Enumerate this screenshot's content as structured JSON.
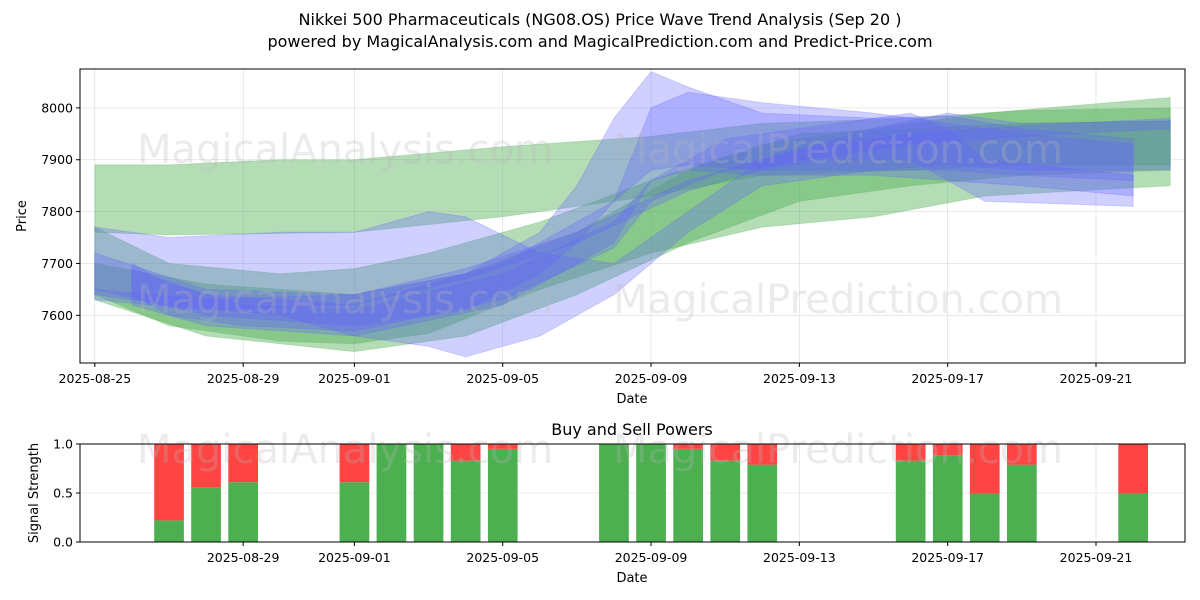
{
  "header": {
    "title_line1": "Nikkei 500 Pharmaceuticals (NG08.OS) Price Wave Trend Analysis (Sep 20 )",
    "title_line2": "powered by MagicalAnalysis.com and MagicalPrediction.com and Predict-Price.com"
  },
  "watermarks": {
    "analysis": "MagicalAnalysis.com",
    "prediction": "MagicalPrediction.com"
  },
  "colors": {
    "green_band": "#4caf50",
    "blue_band": "#6464ff",
    "buy": "#4caf50",
    "sell": "#ff4444"
  },
  "chart_data": [
    {
      "type": "area",
      "xlabel": "Date",
      "ylabel": "Price",
      "xlim": [
        "2025-08-24.6",
        "2025-09-23.4"
      ],
      "ylim": [
        7508,
        8075
      ],
      "yticks": [
        "7600",
        "7700",
        "7800",
        "7900",
        "8000"
      ],
      "xticks": [
        "2025-08-25",
        "2025-08-29",
        "2025-09-01",
        "2025-09-05",
        "2025-09-09",
        "2025-09-13",
        "2025-09-17",
        "2025-09-21"
      ],
      "grid": true,
      "series": [
        {
          "color": "green",
          "x": [
            "2025-08-25",
            "2025-08-27",
            "2025-08-30",
            "2025-09-01",
            "2025-09-05",
            "2025-09-09",
            "2025-09-12",
            "2025-09-16",
            "2025-09-19",
            "2025-09-23"
          ],
          "upper": [
            7890,
            7890,
            7900,
            7900,
            7925,
            7945,
            7970,
            7980,
            7995,
            8000
          ],
          "lower": [
            7760,
            7755,
            7758,
            7760,
            7790,
            7830,
            7870,
            7880,
            7890,
            7890
          ]
        },
        {
          "color": "green",
          "x": [
            "2025-08-25",
            "2025-08-27",
            "2025-08-30",
            "2025-09-01",
            "2025-09-03",
            "2025-09-06",
            "2025-09-09",
            "2025-09-12",
            "2025-09-15",
            "2025-09-18",
            "2025-09-23"
          ],
          "upper": [
            7770,
            7700,
            7680,
            7690,
            7720,
            7780,
            7860,
            7930,
            7960,
            7990,
            8020
          ],
          "lower": [
            7640,
            7580,
            7550,
            7545,
            7565,
            7650,
            7720,
            7770,
            7790,
            7830,
            7850
          ]
        },
        {
          "color": "green",
          "x": [
            "2025-08-25",
            "2025-08-28",
            "2025-09-01",
            "2025-09-04",
            "2025-09-07",
            "2025-09-10",
            "2025-09-13",
            "2025-09-16",
            "2025-09-19",
            "2025-09-23"
          ],
          "upper": [
            7700,
            7660,
            7640,
            7680,
            7760,
            7880,
            7950,
            7960,
            7970,
            7975
          ],
          "lower": [
            7630,
            7560,
            7530,
            7560,
            7640,
            7740,
            7820,
            7850,
            7870,
            7880
          ]
        },
        {
          "color": "blue",
          "x": [
            "2025-08-25",
            "2025-08-27",
            "2025-08-30",
            "2025-09-01",
            "2025-09-03",
            "2025-09-04",
            "2025-09-06",
            "2025-09-08",
            "2025-09-10",
            "2025-09-12",
            "2025-09-15",
            "2025-09-17",
            "2025-09-19",
            "2025-09-23"
          ],
          "upper": [
            7770,
            7750,
            7760,
            7760,
            7800,
            7790,
            7720,
            7700,
            7800,
            7900,
            7960,
            7990,
            7970,
            7975
          ],
          "lower": [
            7640,
            7620,
            7600,
            7560,
            7540,
            7520,
            7560,
            7640,
            7760,
            7850,
            7880,
            7890,
            7880,
            7880
          ]
        },
        {
          "color": "blue",
          "x": [
            "2025-08-25",
            "2025-08-28",
            "2025-09-01",
            "2025-09-04",
            "2025-09-06",
            "2025-09-07",
            "2025-09-08",
            "2025-09-09",
            "2025-09-10",
            "2025-09-12",
            "2025-09-15",
            "2025-09-17",
            "2025-09-19",
            "2025-09-22"
          ],
          "upper": [
            7720,
            7650,
            7640,
            7680,
            7760,
            7850,
            7980,
            8070,
            8040,
            7990,
            7980,
            7985,
            7960,
            7940
          ],
          "lower": [
            7650,
            7600,
            7580,
            7610,
            7680,
            7740,
            7820,
            7880,
            7890,
            7880,
            7880,
            7880,
            7870,
            7860
          ]
        },
        {
          "color": "blue",
          "x": [
            "2025-08-26",
            "2025-08-28",
            "2025-09-01",
            "2025-09-05",
            "2025-09-08",
            "2025-09-09",
            "2025-09-10",
            "2025-09-12",
            "2025-09-15",
            "2025-09-17",
            "2025-09-19",
            "2025-09-22"
          ],
          "upper": [
            7690,
            7640,
            7620,
            7700,
            7820,
            8000,
            8030,
            8010,
            7990,
            7970,
            7950,
            7930
          ],
          "lower": [
            7620,
            7580,
            7560,
            7620,
            7740,
            7860,
            7880,
            7870,
            7870,
            7860,
            7850,
            7830
          ]
        },
        {
          "color": "blue",
          "x": [
            "2025-08-26",
            "2025-08-27",
            "2025-08-29",
            "2025-09-01",
            "2025-09-05",
            "2025-09-08",
            "2025-09-09",
            "2025-09-11",
            "2025-09-14",
            "2025-09-16",
            "2025-09-17",
            "2025-09-18",
            "2025-09-22"
          ],
          "upper": [
            7700,
            7660,
            7620,
            7610,
            7680,
            7780,
            7860,
            7940,
            7970,
            7990,
            7960,
            7900,
            7870
          ],
          "lower": [
            7640,
            7600,
            7580,
            7570,
            7630,
            7730,
            7820,
            7880,
            7900,
            7900,
            7860,
            7820,
            7810
          ]
        },
        {
          "color": "blue",
          "x": [
            "2025-08-25",
            "2025-08-28",
            "2025-09-01",
            "2025-09-04",
            "2025-09-07",
            "2025-09-10",
            "2025-09-13",
            "2025-09-16",
            "2025-09-19",
            "2025-09-23"
          ],
          "upper": [
            7650,
            7630,
            7640,
            7690,
            7760,
            7860,
            7920,
            7950,
            7965,
            7980
          ],
          "lower": [
            7630,
            7610,
            7620,
            7670,
            7740,
            7840,
            7900,
            7930,
            7945,
            7960
          ]
        }
      ]
    },
    {
      "type": "bar",
      "title": "Buy and Sell Powers",
      "xlabel": "Date",
      "ylabel": "Signal Strength",
      "ylim": [
        0,
        1
      ],
      "yticks": [
        "0.0",
        "0.5",
        "1.0"
      ],
      "xticks": [
        "2025-08-29",
        "2025-09-01",
        "2025-09-05",
        "2025-09-09",
        "2025-09-13",
        "2025-09-17",
        "2025-09-21"
      ],
      "grid": true,
      "stacked": true,
      "categories": [
        "2025-08-27",
        "2025-08-28",
        "2025-08-29",
        "2025-09-01",
        "2025-09-02",
        "2025-09-03",
        "2025-09-04",
        "2025-09-05",
        "2025-09-08",
        "2025-09-09",
        "2025-09-10",
        "2025-09-11",
        "2025-09-12",
        "2025-09-16",
        "2025-09-17",
        "2025-09-18",
        "2025-09-19",
        "2025-09-22"
      ],
      "series": [
        {
          "name": "buy",
          "values": [
            0.22,
            0.56,
            0.61,
            0.61,
            1.0,
            1.0,
            0.83,
            0.95,
            1.0,
            1.0,
            0.95,
            0.83,
            0.79,
            0.83,
            0.88,
            0.5,
            0.79,
            0.5
          ]
        },
        {
          "name": "sell",
          "values": [
            0.78,
            0.44,
            0.39,
            0.39,
            0.0,
            0.0,
            0.17,
            0.05,
            0.0,
            0.0,
            0.05,
            0.17,
            0.21,
            0.17,
            0.12,
            0.5,
            0.21,
            0.5
          ]
        }
      ]
    }
  ]
}
